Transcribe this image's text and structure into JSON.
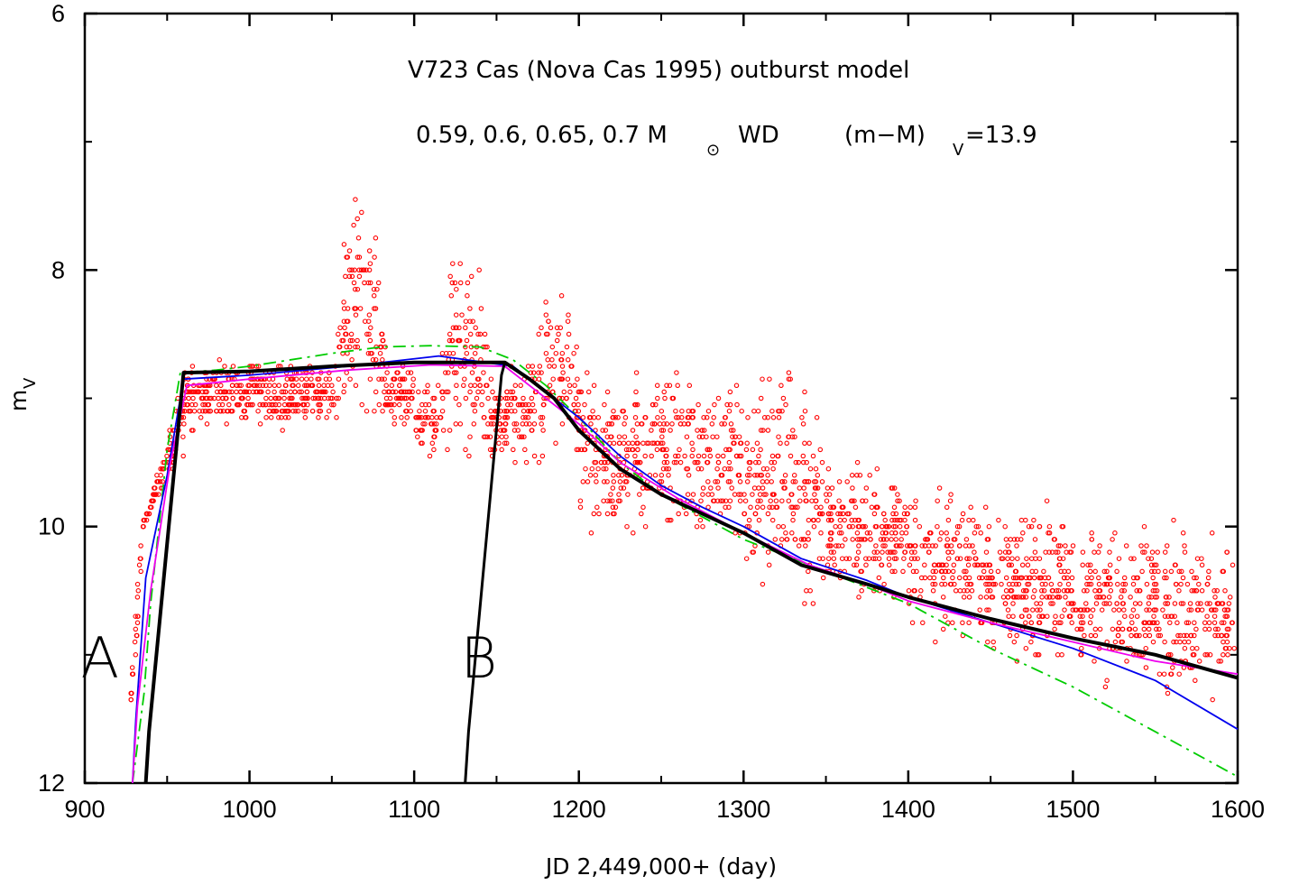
{
  "chart_data": {
    "type": "line",
    "title": "V723 Cas (Nova Cas 1995) outburst model",
    "subtitle_parts": {
      "masses": "0.59, 0.6, 0.65, 0.7 M",
      "sun_symbol": "⊙",
      "wd": "WD",
      "distance_modulus_prefix": "(m−M)",
      "distance_modulus_sub": "V",
      "distance_modulus_value": "=13.9"
    },
    "xlabel": "JD 2,449,000+ (day)",
    "ylabel_main": "m",
    "ylabel_sub": "V",
    "xlim": [
      900,
      1600
    ],
    "ylim": [
      12,
      6
    ],
    "y_inverted": true,
    "x_ticks": [
      "900",
      "1000",
      "1100",
      "1200",
      "1300",
      "1400",
      "1500",
      "1600"
    ],
    "y_ticks": [
      "6",
      "8",
      "10",
      "12"
    ],
    "annotations": [
      {
        "text": "A",
        "x": 925,
        "y": 11.0
      },
      {
        "text": "B",
        "x": 1120,
        "y": 11.0
      }
    ],
    "colors": {
      "observations": "#ff0000",
      "model_a": "#000000",
      "model_b": "#000000",
      "model_green": "#00cc00",
      "model_blue": "#0000ee",
      "model_magenta": "#ee00ee"
    },
    "series": [
      {
        "type": "line",
        "color": "#000000",
        "width": 4,
        "points": [
          [
            937,
            12.0
          ],
          [
            939,
            11.6
          ],
          [
            960,
            8.8
          ],
          [
            1000,
            8.79
          ],
          [
            1050,
            8.75
          ],
          [
            1100,
            8.72
          ],
          [
            1155,
            8.72
          ],
          [
            1170,
            8.85
          ],
          [
            1185,
            9.0
          ],
          [
            1200,
            9.25
          ],
          [
            1225,
            9.55
          ],
          [
            1250,
            9.75
          ],
          [
            1275,
            9.9
          ],
          [
            1300,
            10.05
          ],
          [
            1335,
            10.3
          ],
          [
            1375,
            10.45
          ],
          [
            1400,
            10.55
          ],
          [
            1450,
            10.72
          ],
          [
            1500,
            10.87
          ],
          [
            1550,
            11.0
          ],
          [
            1600,
            11.18
          ]
        ]
      },
      {
        "type": "line",
        "color": "#000000",
        "width": 3,
        "points": [
          [
            1131,
            12.0
          ],
          [
            1133,
            11.6
          ],
          [
            1153,
            8.82
          ],
          [
            1155,
            8.72
          ]
        ]
      },
      {
        "type": "dashdot",
        "color": "#00cc00",
        "width": 1.8,
        "points": [
          [
            929,
            12.0
          ],
          [
            936,
            11.3
          ],
          [
            940,
            10.6
          ],
          [
            950,
            9.4
          ],
          [
            958,
            8.8
          ],
          [
            980,
            8.78
          ],
          [
            1000,
            8.75
          ],
          [
            1050,
            8.65
          ],
          [
            1080,
            8.6
          ],
          [
            1110,
            8.59
          ],
          [
            1140,
            8.6
          ],
          [
            1160,
            8.7
          ],
          [
            1180,
            8.9
          ],
          [
            1200,
            9.15
          ],
          [
            1225,
            9.5
          ],
          [
            1250,
            9.75
          ],
          [
            1300,
            10.1
          ],
          [
            1350,
            10.35
          ],
          [
            1400,
            10.6
          ],
          [
            1450,
            10.95
          ],
          [
            1500,
            11.25
          ],
          [
            1550,
            11.6
          ],
          [
            1600,
            11.95
          ]
        ]
      },
      {
        "type": "line",
        "color": "#0000ee",
        "width": 1.8,
        "points": [
          [
            929,
            12.0
          ],
          [
            931,
            11.5
          ],
          [
            937,
            10.4
          ],
          [
            950,
            9.6
          ],
          [
            960,
            8.85
          ],
          [
            1000,
            8.82
          ],
          [
            1060,
            8.75
          ],
          [
            1115,
            8.67
          ],
          [
            1160,
            8.75
          ],
          [
            1180,
            8.95
          ],
          [
            1200,
            9.15
          ],
          [
            1225,
            9.45
          ],
          [
            1250,
            9.68
          ],
          [
            1275,
            9.85
          ],
          [
            1300,
            10.0
          ],
          [
            1335,
            10.25
          ],
          [
            1375,
            10.42
          ],
          [
            1400,
            10.55
          ],
          [
            1450,
            10.75
          ],
          [
            1500,
            10.95
          ],
          [
            1550,
            11.2
          ],
          [
            1600,
            11.58
          ]
        ]
      },
      {
        "type": "line",
        "color": "#ee00ee",
        "width": 1.8,
        "points": [
          [
            929,
            12.0
          ],
          [
            932,
            11.4
          ],
          [
            940,
            10.5
          ],
          [
            952,
            9.5
          ],
          [
            962,
            8.9
          ],
          [
            1000,
            8.85
          ],
          [
            1060,
            8.78
          ],
          [
            1110,
            8.74
          ],
          [
            1155,
            8.75
          ],
          [
            1175,
            8.95
          ],
          [
            1200,
            9.2
          ],
          [
            1225,
            9.5
          ],
          [
            1260,
            9.78
          ],
          [
            1300,
            10.05
          ],
          [
            1340,
            10.3
          ],
          [
            1375,
            10.45
          ],
          [
            1400,
            10.58
          ],
          [
            1450,
            10.75
          ],
          [
            1500,
            10.9
          ],
          [
            1550,
            11.05
          ],
          [
            1600,
            11.15
          ]
        ]
      }
    ],
    "observation_peaks": [
      {
        "x": 1068,
        "y": 7.0,
        "note": "peak near JD 2,450,068"
      },
      {
        "x": 1131,
        "y": 7.45,
        "note": "peak near JD 2,450,131"
      },
      {
        "x": 1185,
        "y": 7.9,
        "note": "peak near JD 2,450,185"
      },
      {
        "x": 1323,
        "y": 8.5,
        "note": "peak near JD 2,450,323"
      }
    ]
  }
}
